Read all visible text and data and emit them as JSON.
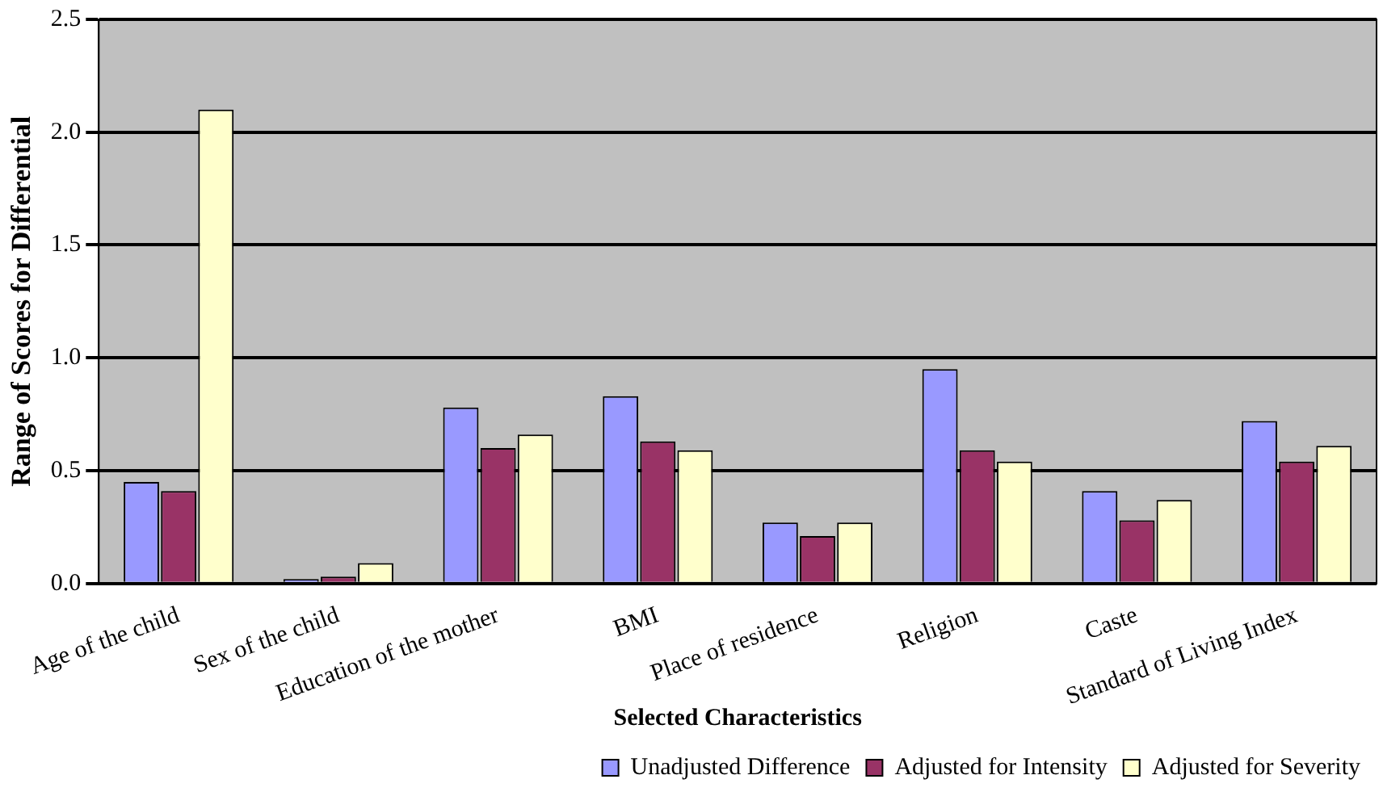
{
  "chart_data": {
    "type": "bar",
    "xlabel": "Selected Characteristics",
    "ylabel": "Range of Scores for Differential",
    "categories": [
      "Age of the child",
      "Sex of the child",
      "Education of the mother",
      "BMI",
      "Place of residence",
      "Religion",
      "Caste",
      "Standard of Living Index"
    ],
    "series": [
      {
        "name": "Unadjusted Difference",
        "color": "#9999ff",
        "values": [
          0.45,
          0.02,
          0.78,
          0.83,
          0.27,
          0.95,
          0.41,
          0.72
        ]
      },
      {
        "name": "Adjusted for Intensity",
        "color": "#993366",
        "values": [
          0.41,
          0.03,
          0.6,
          0.63,
          0.21,
          0.59,
          0.28,
          0.54
        ]
      },
      {
        "name": "Adjusted for Severity",
        "color": "#ffffcc",
        "values": [
          2.1,
          0.09,
          0.66,
          0.59,
          0.27,
          0.54,
          0.37,
          0.61
        ]
      }
    ],
    "ylim": [
      0,
      2.5
    ],
    "yticks": [
      {
        "value": 0,
        "label": "0.0"
      },
      {
        "value": 0.5,
        "label": "0.5"
      },
      {
        "value": 1,
        "label": "1.0"
      },
      {
        "value": 1.5,
        "label": "1.5"
      },
      {
        "value": 2,
        "label": "2.0"
      },
      {
        "value": 2.5,
        "label": "2.5"
      }
    ],
    "grid": "y",
    "legend": "bottom"
  }
}
